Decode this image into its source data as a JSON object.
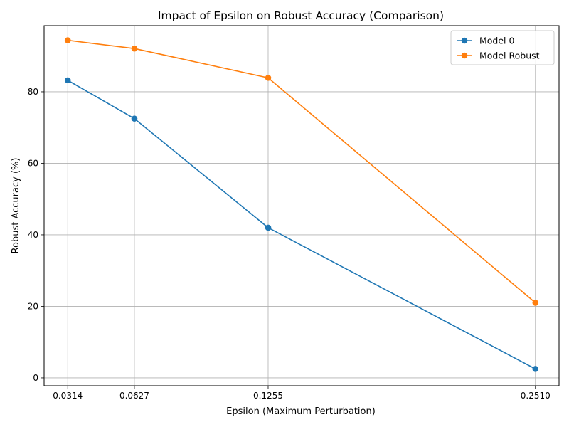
{
  "chart_data": {
    "type": "line",
    "title": "Impact of Epsilon on Robust Accuracy (Comparison)",
    "xlabel": "Epsilon (Maximum Perturbation)",
    "ylabel": "Robust Accuracy (%)",
    "x": [
      0.0314,
      0.0627,
      0.1255,
      0.251
    ],
    "xticks": [
      "0.0314",
      "0.0627",
      "0.1255",
      "0.2510"
    ],
    "yticks": [
      "0",
      "20",
      "40",
      "60",
      "80"
    ],
    "ylim": [
      -2.2,
      98.5
    ],
    "xlim": [
      0.0203,
      0.2621
    ],
    "grid": true,
    "legend_position": "top-right",
    "series": [
      {
        "name": "Model 0",
        "color": "#1f77b4",
        "values": [
          83.2,
          72.5,
          42.0,
          2.5
        ]
      },
      {
        "name": "Model Robust",
        "color": "#ff7f0e",
        "values": [
          94.4,
          92.1,
          83.9,
          21.0
        ]
      }
    ]
  }
}
